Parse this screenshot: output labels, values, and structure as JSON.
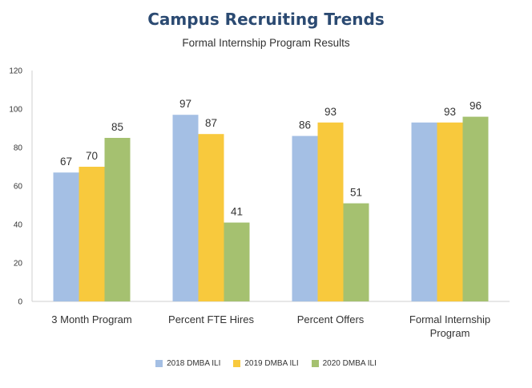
{
  "chart_data": {
    "type": "bar",
    "title": "Campus Recruiting Trends",
    "subtitle": "Formal Internship Program Results",
    "categories": [
      "3 Month Program",
      "Percent FTE Hires",
      "Percent Offers",
      "Formal Internship Program"
    ],
    "series": [
      {
        "name": "2018 DMBA ILI",
        "color": "#a4bfe4",
        "values": [
          67,
          97,
          86,
          93
        ],
        "labels": [
          "67",
          "97",
          "86",
          ""
        ]
      },
      {
        "name": "2019 DMBA ILI",
        "color": "#f8c93d",
        "values": [
          70,
          87,
          93,
          93
        ],
        "labels": [
          "70",
          "87",
          "93",
          "93"
        ]
      },
      {
        "name": "2020 DMBA ILI",
        "color": "#a5c170",
        "values": [
          85,
          41,
          51,
          96
        ],
        "labels": [
          "85",
          "41",
          "51",
          "96"
        ]
      }
    ],
    "ylim": [
      0,
      120
    ],
    "yticks": [
      0,
      20,
      40,
      60,
      80,
      100,
      120
    ],
    "grid": false,
    "legend_position": "bottom-center"
  }
}
